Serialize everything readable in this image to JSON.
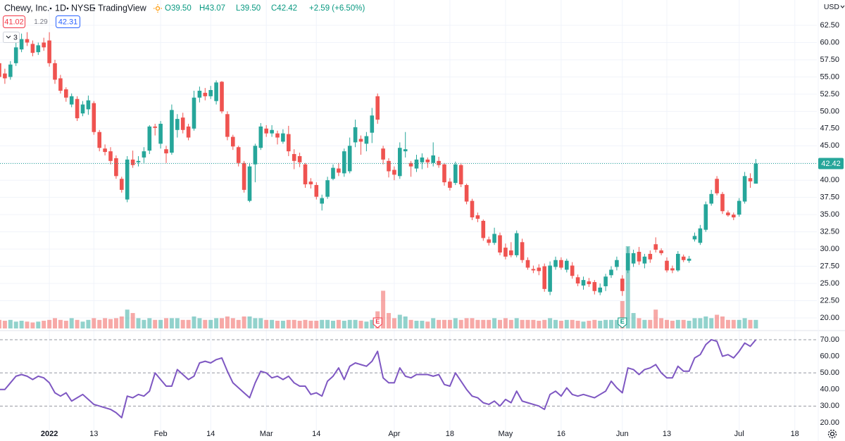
{
  "header": {
    "symbol": "Chewy, Inc.",
    "interval": "1D",
    "exchange": "NYSE",
    "source": "TradingView",
    "ohlc": [
      "O39.50",
      "H43.07",
      "L39.50",
      "C42.42"
    ],
    "change": "+2.59 (+6.50%)",
    "bid": 41.02,
    "spread": 1.29,
    "ask": 42.31,
    "indicators": 3,
    "currency": "USD"
  },
  "chart_data": [
    {
      "type": "candlestick",
      "up_color": "#26a69a",
      "down_color": "#ef5350",
      "categories": [
        null,
        null,
        null,
        null,
        null,
        null,
        null,
        null,
        null,
        "2022",
        null,
        null,
        null,
        null,
        null,
        null,
        null,
        "13",
        null,
        null,
        null,
        null,
        null,
        null,
        null,
        null,
        null,
        null,
        null,
        "Feb",
        null,
        null,
        null,
        null,
        null,
        null,
        null,
        null,
        "14",
        null,
        null,
        null,
        null,
        null,
        null,
        null,
        null,
        null,
        "Mar",
        null,
        null,
        null,
        null,
        null,
        null,
        null,
        null,
        "14",
        null,
        null,
        null,
        null,
        null,
        null,
        null,
        null,
        null,
        null,
        null,
        null,
        null,
        "Apr",
        null,
        null,
        null,
        null,
        null,
        null,
        null,
        null,
        null,
        "18",
        null,
        null,
        null,
        null,
        null,
        null,
        null,
        null,
        null,
        "May",
        null,
        null,
        null,
        null,
        null,
        null,
        null,
        null,
        null,
        "16",
        null,
        null,
        null,
        null,
        null,
        null,
        null,
        null,
        null,
        null,
        "Jun",
        null,
        null,
        null,
        null,
        null,
        null,
        null,
        "13",
        null,
        null,
        null,
        null,
        null,
        null,
        null,
        null,
        null,
        null,
        null,
        null,
        "Jul",
        null,
        null,
        null,
        null,
        null,
        null,
        null,
        null,
        null,
        "18"
      ],
      "open": [
        57.0,
        55.5,
        55.0,
        57.0,
        59.0,
        60.5,
        59.8,
        58.6,
        60.0,
        60.3,
        57.0,
        54.8,
        53.2,
        51.0,
        51.8,
        49.7,
        50.3,
        51.2,
        47.0,
        44.6,
        44.2,
        43.2,
        40.2,
        37.2,
        43.0,
        42.6,
        43.3,
        44.3,
        47.8,
        45.3,
        44.5,
        44.0,
        47.3,
        49.1,
        47.8,
        47.5,
        52.0,
        52.7,
        52.2,
        51.5,
        54.3,
        49.6,
        46.3,
        44.8,
        42.5,
        37.0,
        42.3,
        44.7,
        47.5,
        46.8,
        46.8,
        45.6,
        46.7,
        43.8,
        43.5,
        42.3,
        39.8,
        39.3,
        36.6,
        37.6,
        40.2,
        41.7,
        41.0,
        41.3,
        45.5,
        46.0,
        45.3,
        46.9,
        52.2,
        44.6,
        42.8,
        41.5,
        40.6,
        44.2,
        42.5,
        41.7,
        42.6,
        43.0,
        42.5,
        42.8,
        42.3,
        39.8,
        39.6,
        42.2,
        39.3,
        37.0,
        34.9,
        34.1,
        31.4,
        30.9,
        32.0,
        30.2,
        29.8,
        29.1,
        31.0,
        28.4,
        27.1,
        27.3,
        27.5,
        23.8,
        27.4,
        28.4,
        27.0,
        27.6,
        25.9,
        24.7,
        25.3,
        25.2,
        23.7,
        24.6,
        26.2,
        27.4,
        25.7,
        26.9,
        27.9,
        29.6,
        27.9,
        29.3,
        30.7,
        29.8,
        28.3,
        27.2,
        26.9,
        28.9,
        28.3,
        31.4,
        30.9,
        32.8,
        36.6,
        40.2,
        38.0,
        35.3,
        35.0,
        35.0,
        36.9,
        40.3,
        39.5,
        null,
        null,
        null,
        null,
        null,
        null,
        null
      ],
      "high": [
        57.8,
        56.2,
        57.3,
        60.2,
        61.3,
        61.5,
        60.3,
        60.0,
        60.7,
        61.5,
        57.5,
        55.3,
        53.5,
        52.6,
        52.2,
        51.5,
        52.3,
        51.5,
        47.3,
        45.2,
        44.8,
        43.6,
        40.5,
        43.5,
        44.3,
        43.5,
        44.8,
        48.0,
        48.2,
        48.6,
        45.0,
        51.0,
        49.6,
        49.8,
        48.2,
        53.0,
        53.6,
        53.4,
        53.7,
        54.5,
        54.4,
        50.0,
        46.6,
        45.0,
        42.8,
        42.5,
        45.3,
        48.3,
        48.0,
        48.0,
        47.2,
        47.4,
        47.9,
        44.5,
        44.0,
        42.5,
        40.3,
        39.7,
        37.9,
        40.5,
        42.3,
        42.5,
        44.6,
        46.2,
        48.8,
        46.5,
        47.0,
        50.5,
        52.6,
        45.0,
        43.2,
        42.0,
        45.5,
        47.0,
        42.8,
        43.7,
        43.9,
        43.3,
        45.5,
        43.4,
        42.5,
        40.3,
        42.7,
        42.5,
        39.5,
        37.3,
        35.3,
        34.3,
        31.8,
        33.1,
        32.4,
        30.8,
        31.0,
        32.7,
        31.5,
        28.8,
        27.6,
        27.8,
        27.9,
        28.2,
        28.9,
        28.8,
        28.6,
        28.1,
        26.3,
        26.0,
        25.8,
        25.5,
        25.0,
        26.4,
        27.5,
        28.9,
        26.2,
        30.3,
        29.9,
        30.3,
        29.3,
        29.8,
        31.7,
        30.1,
        28.8,
        27.6,
        29.7,
        29.2,
        29.0,
        32.4,
        33.5,
        36.9,
        38.6,
        40.6,
        38.3,
        35.6,
        35.3,
        37.4,
        41.2,
        41.0,
        43.07,
        null,
        null,
        null,
        null,
        null,
        null,
        null
      ],
      "low": [
        54.3,
        54.0,
        54.6,
        56.6,
        58.6,
        59.5,
        58.0,
        58.2,
        58.8,
        56.5,
        54.0,
        52.6,
        51.4,
        50.6,
        48.6,
        49.3,
        49.5,
        46.6,
        44.2,
        43.6,
        42.3,
        40.2,
        38.2,
        36.8,
        41.8,
        42.0,
        42.5,
        43.8,
        46.5,
        44.6,
        42.5,
        43.7,
        46.2,
        46.8,
        45.8,
        47.2,
        51.3,
        51.6,
        51.8,
        51.0,
        49.7,
        45.8,
        44.4,
        42.0,
        38.2,
        36.8,
        39.7,
        44.4,
        46.3,
        46.3,
        45.2,
        45.3,
        43.5,
        41.6,
        41.9,
        38.9,
        38.8,
        37.2,
        35.6,
        37.3,
        40.0,
        40.6,
        40.5,
        41.0,
        44.8,
        43.7,
        44.2,
        45.4,
        48.2,
        42.3,
        40.4,
        40.0,
        40.2,
        43.3,
        40.5,
        41.2,
        41.6,
        41.8,
        42.0,
        41.8,
        39.2,
        38.5,
        39.3,
        39.0,
        36.5,
        34.2,
        33.9,
        31.2,
        30.5,
        30.6,
        29.1,
        28.5,
        28.8,
        28.8,
        28.0,
        27.0,
        26.5,
        26.2,
        23.8,
        23.3,
        27.0,
        27.0,
        26.6,
        25.7,
        24.6,
        24.1,
        24.5,
        23.4,
        23.3,
        23.9,
        25.8,
        26.9,
        23.2,
        26.5,
        27.4,
        27.7,
        27.2,
        28.0,
        29.5,
        29.1,
        26.6,
        26.5,
        26.7,
        28.1,
        28.0,
        31.1,
        30.6,
        32.5,
        36.3,
        37.8,
        35.1,
        34.7,
        34.2,
        34.7,
        36.6,
        38.9,
        39.5,
        null,
        null,
        null,
        null,
        null,
        null,
        null
      ],
      "close": [
        55.0,
        54.8,
        56.8,
        59.3,
        60.5,
        60.0,
        58.5,
        59.6,
        59.3,
        57.0,
        54.6,
        53.0,
        52.0,
        52.2,
        49.0,
        51.0,
        51.6,
        47.0,
        44.7,
        44.1,
        42.8,
        40.6,
        38.6,
        43.0,
        42.2,
        42.8,
        44.2,
        47.8,
        47.6,
        48.2,
        43.9,
        50.2,
        48.9,
        47.3,
        46.2,
        52.0,
        53.0,
        52.2,
        53.1,
        54.2,
        50.0,
        46.3,
        44.9,
        42.5,
        38.6,
        42.0,
        45.0,
        47.8,
        46.8,
        47.3,
        46.2,
        46.8,
        44.2,
        42.8,
        42.6,
        39.4,
        39.4,
        37.6,
        37.4,
        40.0,
        41.8,
        41.1,
        44.2,
        45.0,
        47.7,
        45.6,
        46.4,
        49.4,
        48.8,
        43.0,
        41.3,
        40.8,
        44.7,
        44.5,
        42.0,
        43.0,
        43.3,
        42.6,
        43.6,
        42.2,
        39.7,
        38.9,
        42.3,
        39.4,
        36.9,
        34.6,
        34.4,
        31.6,
        30.9,
        32.2,
        29.5,
        28.9,
        29.1,
        32.3,
        28.4,
        27.3,
        26.9,
        26.8,
        24.2,
        27.6,
        28.4,
        27.3,
        28.3,
        26.1,
        25.0,
        25.5,
        24.9,
        23.9,
        24.4,
        26.0,
        27.0,
        28.4,
        23.9,
        29.4,
        29.4,
        28.2,
        28.9,
        28.5,
        29.9,
        29.4,
        26.9,
        26.9,
        29.3,
        28.4,
        28.6,
        31.9,
        33.0,
        36.5,
        38.0,
        38.1,
        35.5,
        34.9,
        34.6,
        37.0,
        40.6,
        39.83,
        42.42,
        null,
        null,
        null,
        null,
        null,
        null,
        null
      ],
      "volume": [
        5,
        4.5,
        5,
        4,
        4.5,
        4,
        3.5,
        4,
        4.5,
        5,
        6,
        5,
        4.5,
        6,
        5,
        4,
        5,
        6,
        5,
        6,
        5.5,
        6,
        7,
        11,
        9,
        6,
        5,
        6,
        5,
        5,
        6,
        6,
        6,
        5,
        5,
        7,
        6,
        5,
        5,
        6,
        6,
        7,
        6,
        5,
        7,
        7,
        6,
        6,
        5,
        5,
        4.5,
        4.5,
        5,
        5,
        4.5,
        5,
        4.5,
        4.5,
        5,
        5,
        4.5,
        5,
        4.5,
        5,
        5,
        4.5,
        4,
        5,
        10,
        22,
        9,
        6,
        8,
        7,
        5,
        4.5,
        4.5,
        4,
        6,
        5,
        5,
        5,
        6,
        5,
        6,
        6,
        5,
        5,
        5,
        6,
        5,
        6,
        5,
        6,
        5,
        5,
        5,
        4.5,
        5,
        6,
        5,
        4.5,
        5,
        5,
        4.5,
        4,
        4.5,
        5,
        4.5,
        5,
        5,
        5,
        16,
        48,
        9,
        6,
        5,
        5,
        11,
        6,
        5,
        4.5,
        5,
        5,
        4.5,
        6,
        6,
        7,
        6,
        8,
        7,
        5,
        5,
        5,
        6,
        5,
        5,
        null,
        null,
        null,
        null,
        null,
        null,
        null
      ],
      "earnings": [
        {
          "at": 68,
          "label": "E",
          "color": "#f23645"
        },
        {
          "at": 112,
          "label": "E",
          "color": "#089981"
        }
      ],
      "ylim": [
        18.36,
        66.18
      ],
      "yticks": [
        {
          "value": 20,
          "label": "20.00"
        },
        {
          "value": 22.5,
          "label": "22.50"
        },
        {
          "value": 25,
          "label": "25.00"
        },
        {
          "value": 27.5,
          "label": "27.50"
        },
        {
          "value": 30,
          "label": "30.00"
        },
        {
          "value": 32.5,
          "label": "32.50"
        },
        {
          "value": 35,
          "label": "35.00"
        },
        {
          "value": 37.5,
          "label": "37.50"
        },
        {
          "value": 40,
          "label": "40.00"
        },
        {
          "value": 42.5,
          "label": "42.50"
        },
        {
          "value": 45,
          "label": "45.00"
        },
        {
          "value": 47.5,
          "label": "47.50"
        },
        {
          "value": 50,
          "label": "50.00"
        },
        {
          "value": 52.5,
          "label": "52.50"
        },
        {
          "value": 55,
          "label": "55.00"
        },
        {
          "value": 57.5,
          "label": "57.50"
        },
        {
          "value": 60,
          "label": "60.00"
        },
        {
          "value": 62.5,
          "label": "62.50"
        }
      ],
      "grid": true
    },
    {
      "type": "line",
      "color": "#7e57c2",
      "values": [
        40,
        40,
        44,
        48,
        49,
        48,
        46,
        48,
        47,
        44,
        38,
        36,
        38,
        33,
        35,
        37,
        34,
        31,
        30,
        29,
        28,
        26,
        23,
        36,
        35,
        37,
        36,
        39,
        50,
        46,
        42,
        42,
        52,
        49,
        46,
        48,
        56,
        57,
        56,
        58,
        59,
        51,
        44,
        41,
        38,
        35,
        44,
        51,
        50,
        47,
        48,
        46,
        48,
        44,
        42,
        42,
        37,
        38,
        36,
        45,
        48,
        53,
        46,
        54,
        56,
        55,
        54,
        57,
        63,
        47,
        44,
        44,
        53,
        48,
        47,
        49,
        49,
        49,
        48,
        49,
        43,
        42,
        50,
        45,
        40,
        36,
        35,
        32,
        31,
        33,
        30,
        34,
        32,
        39,
        33,
        32,
        31,
        30,
        28,
        37,
        39,
        36,
        41,
        37,
        36,
        37,
        36,
        35,
        37,
        39,
        45,
        41,
        38,
        53,
        52,
        49,
        52,
        53,
        55,
        50,
        47,
        47,
        54,
        51,
        51,
        59,
        61,
        67,
        70,
        69,
        60,
        61,
        59,
        63,
        68,
        66,
        70,
        null,
        null,
        null,
        null,
        null,
        null,
        null
      ],
      "levels": [
        30,
        50,
        70
      ],
      "ylim": [
        15.3,
        75.5
      ],
      "yticks": [
        {
          "value": 20,
          "label": "20.00"
        },
        {
          "value": 30,
          "label": "30.00"
        },
        {
          "value": 40,
          "label": "40.00"
        },
        {
          "value": 50,
          "label": "50.00"
        },
        {
          "value": 60,
          "label": "60.00"
        },
        {
          "value": 70,
          "label": "70.00"
        }
      ]
    }
  ]
}
